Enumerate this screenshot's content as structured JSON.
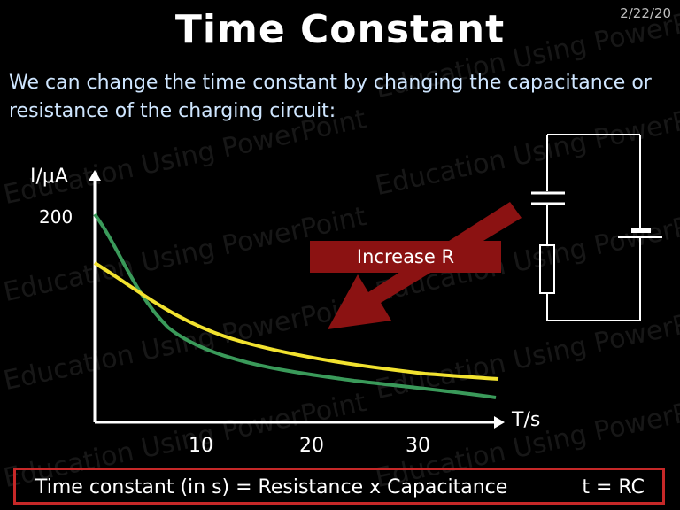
{
  "slide": {
    "date": "2/22/20",
    "title": "Time Constant",
    "subtitle": "We can change the time constant by changing the capacitance or resistance of the charging circuit:",
    "watermark": "Education Using PowerPoint"
  },
  "graph": {
    "y_label": "I/μA",
    "y_tick": "200",
    "x_label": "T/s",
    "x_ticks": [
      "10",
      "20",
      "30"
    ],
    "banner_label": "Increase R",
    "curve_colors": {
      "green": "#3a9a5a",
      "yellow": "#f2e22f"
    }
  },
  "footer": {
    "equation": "Time constant (in s) = Resistance x Capacitance",
    "short_form": "t = RC",
    "border_color": "#c62828"
  }
}
